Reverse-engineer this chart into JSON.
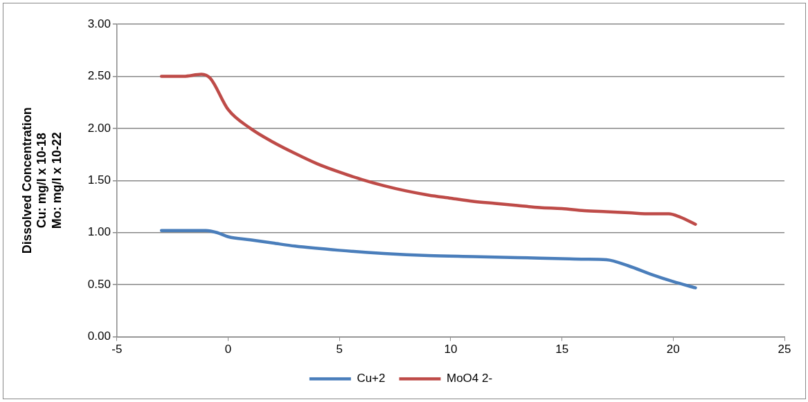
{
  "chart_data": {
    "type": "line",
    "ylabel": "Dissolved Concentration\nCu: mg/l x 10-18\nMo: mg/l x 10-22",
    "xlim": [
      -5,
      25
    ],
    "xticks": [
      -5,
      0,
      5,
      10,
      15,
      20,
      25
    ],
    "ylim": [
      0,
      3
    ],
    "yticks": [
      {
        "value": 0,
        "label": "0.00"
      },
      {
        "value": 0.5,
        "label": "0.50"
      },
      {
        "value": 1,
        "label": "1.00"
      },
      {
        "value": 1.5,
        "label": "1.50"
      },
      {
        "value": 2,
        "label": "2.00"
      },
      {
        "value": 2.5,
        "label": "2.50"
      },
      {
        "value": 3,
        "label": "3.00"
      }
    ],
    "grid": "y",
    "legend": "bottom",
    "marker": "none",
    "line_style": "solid",
    "series": [
      {
        "name": "Cu+2",
        "color": "#4a7ebb",
        "x": [
          -3,
          -2,
          -1,
          -0.5,
          0,
          1,
          2,
          3,
          5,
          7,
          9,
          11,
          13,
          15,
          16,
          17,
          18,
          19,
          20,
          21
        ],
        "values": [
          1.02,
          1.02,
          1.02,
          1.0,
          0.96,
          0.93,
          0.9,
          0.87,
          0.83,
          0.8,
          0.78,
          0.77,
          0.76,
          0.75,
          0.745,
          0.74,
          0.68,
          0.6,
          0.53,
          0.47
        ]
      },
      {
        "name": "MoO4 2-",
        "color": "#be4b48",
        "x": [
          -3,
          -2,
          -1.2,
          -0.8,
          0,
          1,
          2,
          3,
          4,
          5,
          6,
          7,
          8,
          9,
          10,
          11,
          12,
          13,
          14,
          15,
          16,
          17,
          18,
          19,
          19.8,
          20.3,
          21
        ],
        "values": [
          2.5,
          2.5,
          2.52,
          2.48,
          2.18,
          2.0,
          1.87,
          1.76,
          1.66,
          1.58,
          1.51,
          1.45,
          1.4,
          1.36,
          1.33,
          1.3,
          1.28,
          1.26,
          1.24,
          1.23,
          1.21,
          1.2,
          1.19,
          1.18,
          1.18,
          1.15,
          1.08
        ]
      }
    ]
  }
}
